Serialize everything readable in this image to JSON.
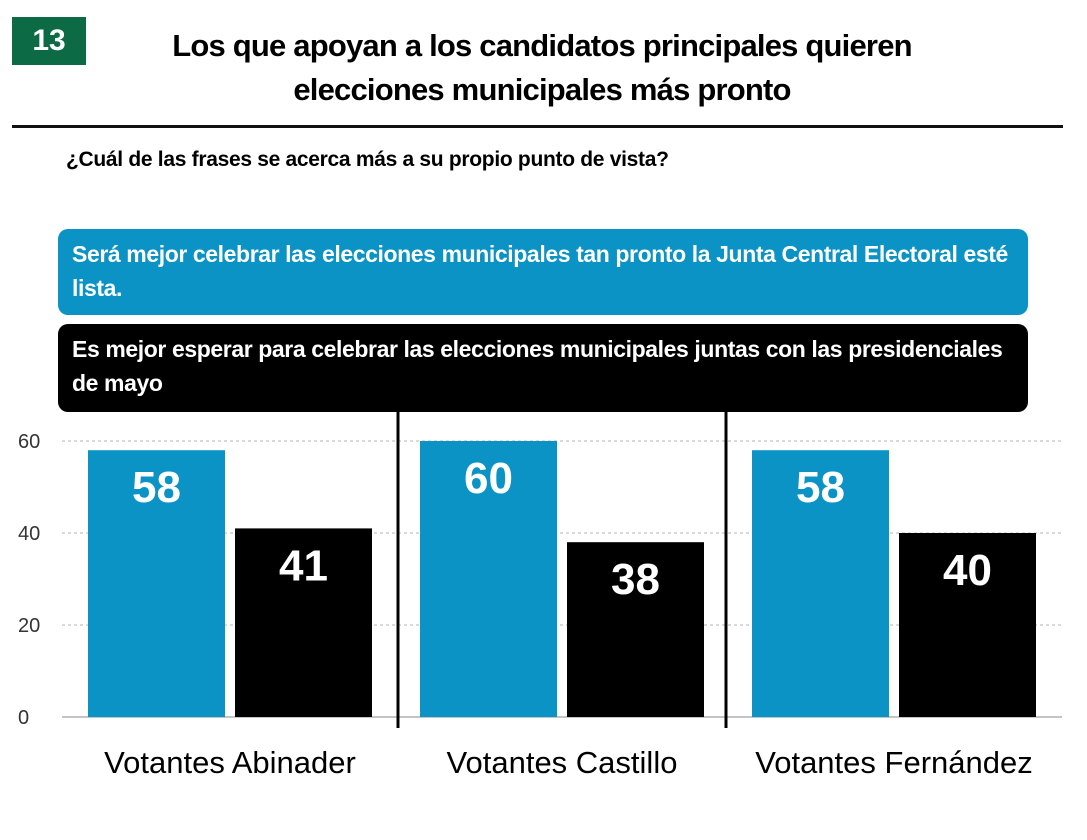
{
  "badge": "13",
  "title_line1": "Los que apoyan a los candidatos principales quieren",
  "title_line2": "elecciones municipales más pronto",
  "question": "¿Cuál de las frases se acerca más a su propio punto de vista?",
  "colors": {
    "blue": "#0b93c6",
    "black": "#000000",
    "badge": "#0c6b45"
  },
  "chart_data": {
    "type": "bar",
    "categories": [
      "Votantes Abinader",
      "Votantes Castillo",
      "Votantes Fernández"
    ],
    "series": [
      {
        "name": "Será mejor celebrar las elecciones municipales tan pronto la Junta Central Electoral esté lista.",
        "color": "#0b93c6",
        "values": [
          58,
          60,
          58
        ]
      },
      {
        "name": "Es mejor esperar para celebrar las elecciones municipales juntas con las presidenciales de mayo",
        "color": "#000000",
        "values": [
          41,
          38,
          40
        ]
      }
    ],
    "yticks": [
      0,
      20,
      40,
      60
    ],
    "ylim": [
      0,
      60
    ],
    "grid": true,
    "legend": "top"
  }
}
